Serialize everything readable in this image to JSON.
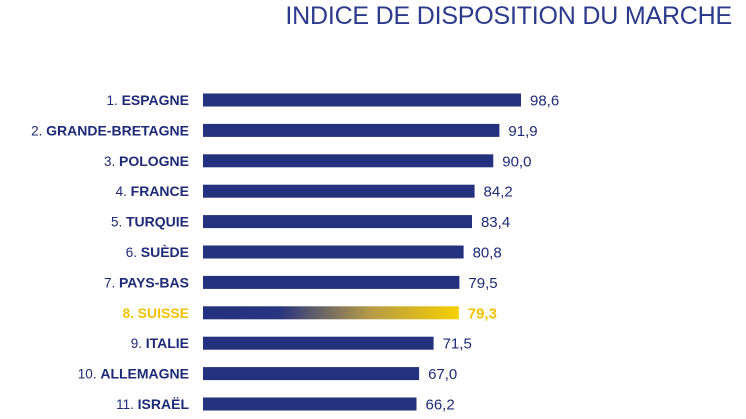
{
  "title": "INDICE DE DISPOSITION DU MARCHE",
  "colors": {
    "bar": "#24317e",
    "text": "#1e2a78",
    "highlight": "#f2c200"
  },
  "chart_data": {
    "type": "bar",
    "orientation": "horizontal",
    "title": "INDICE DE DISPOSITION DU MARCHE",
    "categories": [
      {
        "rank": "1.",
        "name": "ESPAGNE",
        "value": 98.6,
        "label": "98,6"
      },
      {
        "rank": "2.",
        "name": "GRANDE-BRETAGNE",
        "value": 91.9,
        "label": "91,9"
      },
      {
        "rank": "3.",
        "name": "POLOGNE",
        "value": 90.0,
        "label": "90,0"
      },
      {
        "rank": "4.",
        "name": "FRANCE",
        "value": 84.2,
        "label": "84,2"
      },
      {
        "rank": "5.",
        "name": "TURQUIE",
        "value": 83.4,
        "label": "83,4"
      },
      {
        "rank": "6.",
        "name": "SUÈDE",
        "value": 80.8,
        "label": "80,8"
      },
      {
        "rank": "7.",
        "name": "PAYS-BAS",
        "value": 79.5,
        "label": "79,5"
      },
      {
        "rank": "8.",
        "name": "SUISSE",
        "value": 79.3,
        "label": "79,3",
        "highlight": true
      },
      {
        "rank": "9.",
        "name": "ITALIE",
        "value": 71.5,
        "label": "71,5"
      },
      {
        "rank": "10.",
        "name": "ALLEMAGNE",
        "value": 67.0,
        "label": "67,0"
      },
      {
        "rank": "11.",
        "name": "ISRAËL",
        "value": 66.2,
        "label": "66,2"
      }
    ],
    "xlim": [
      0,
      98.6
    ],
    "grid": false,
    "legend": "none"
  }
}
